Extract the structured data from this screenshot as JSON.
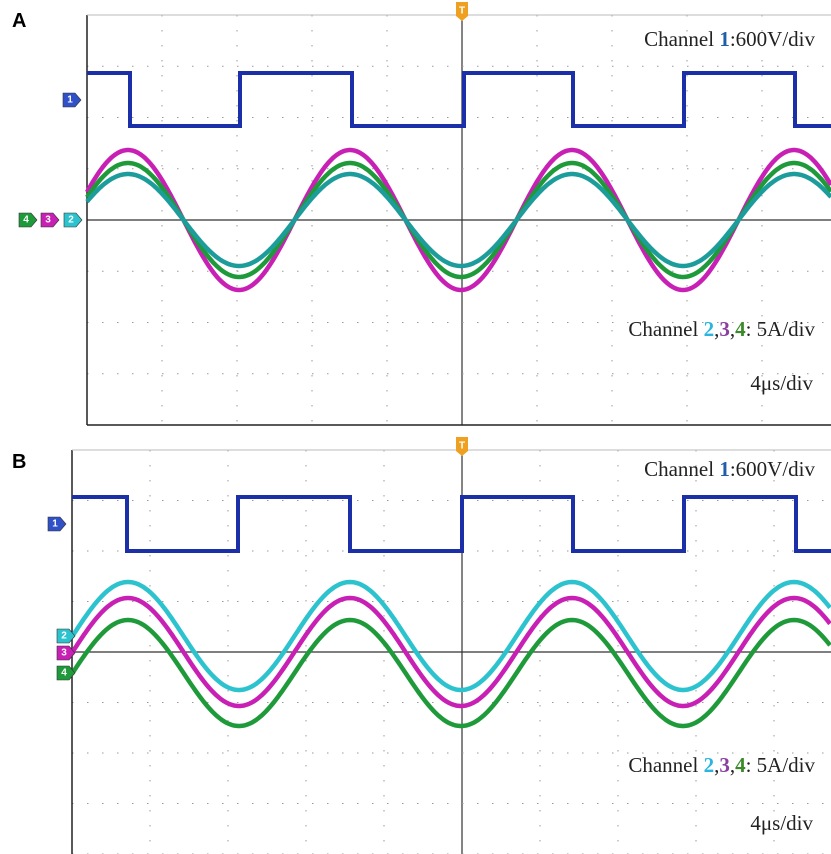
{
  "panels": [
    {
      "label": "A",
      "voltage_scale": {
        "prefix": "Channel ",
        "channel": "1",
        "suffix": ":600V/div"
      },
      "current_scale": {
        "prefix": "Channel ",
        "channels": [
          "2",
          "3",
          "4"
        ],
        "separator": ",",
        "suffix": ": 5A/div"
      },
      "time_scale": "4μs/div",
      "trigger_marker": "T",
      "channel_markers": [
        "1",
        "2",
        "3",
        "4"
      ]
    },
    {
      "label": "B",
      "voltage_scale": {
        "prefix": "Channel ",
        "channel": "1",
        "suffix": ":600V/div"
      },
      "current_scale": {
        "prefix": "Channel ",
        "channels": [
          "2",
          "3",
          "4"
        ],
        "separator": ",",
        "suffix": ": 5A/div"
      },
      "time_scale": "4μs/div",
      "trigger_marker": "T",
      "channel_markers": [
        "1",
        "2",
        "3",
        "4"
      ]
    }
  ]
}
